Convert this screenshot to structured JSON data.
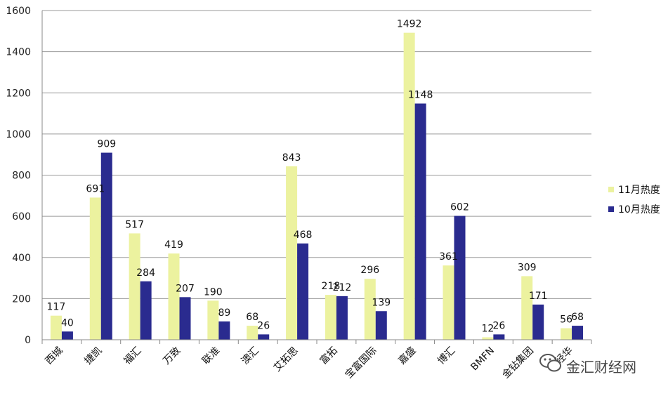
{
  "chart_data": {
    "type": "bar",
    "categories": [
      "西城",
      "捷凯",
      "福汇",
      "万致",
      "联准",
      "澳汇",
      "艾拓思",
      "富拓",
      "宝富国际",
      "嘉盛",
      "博汇",
      "BMFN",
      "金钻集团",
      "经华"
    ],
    "series": [
      {
        "name": "11月热度",
        "color": "#ecf29f",
        "values": [
          117,
          691,
          517,
          419,
          190,
          68,
          843,
          218,
          296,
          1492,
          361,
          12,
          309,
          56
        ]
      },
      {
        "name": "10月热度",
        "color": "#2a2b8f",
        "values": [
          40,
          909,
          284,
          207,
          89,
          26,
          468,
          212,
          139,
          1148,
          602,
          26,
          171,
          68
        ]
      }
    ],
    "yticks": [
      0,
      200,
      400,
      600,
      800,
      1000,
      1200,
      1400,
      1600
    ],
    "ylim": [
      0,
      1600
    ],
    "grid": true,
    "legend_position": "right"
  },
  "watermark": {
    "text": "金汇财经网",
    "icon": "wechat-icon"
  }
}
